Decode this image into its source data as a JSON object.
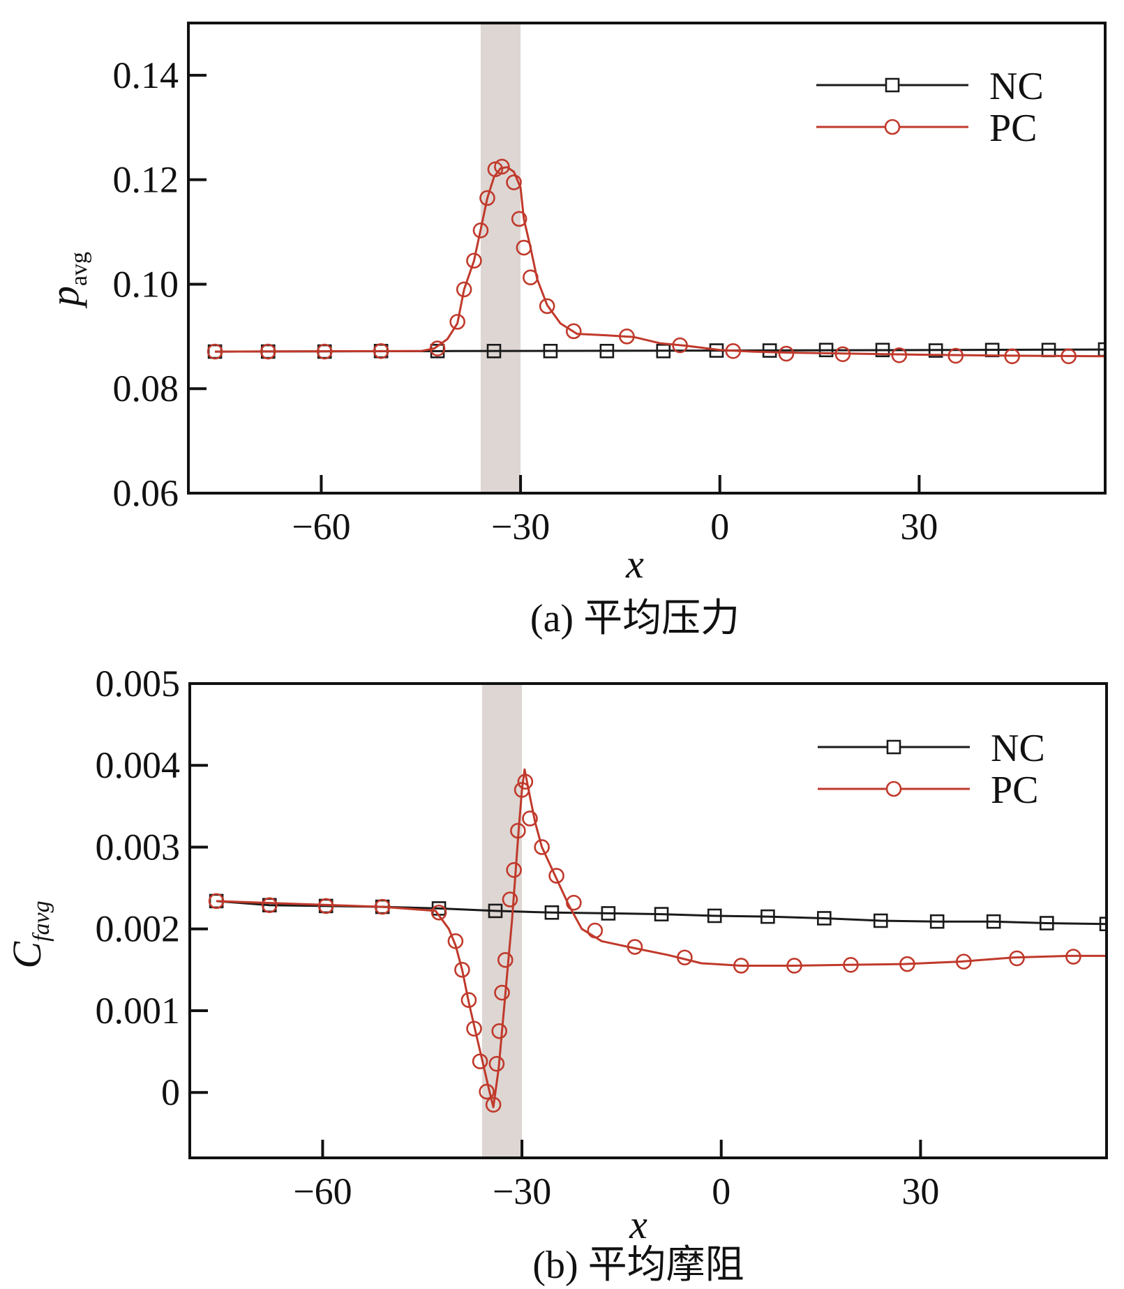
{
  "colors": {
    "nc": "#1a1a1a",
    "pc": "#c0392b",
    "band": "#ddd6d3"
  },
  "chart_data": [
    {
      "type": "line",
      "panel": "a",
      "caption": "(a) 平均压力",
      "xlabel": "x",
      "ylabel": "p",
      "ylabel_sub": "avg",
      "xlim": [
        -80,
        58
      ],
      "ylim": [
        0.06,
        0.15
      ],
      "xticks": [
        -60,
        -30,
        0,
        30
      ],
      "xtick_labels": [
        "−60",
        "−30",
        "0",
        "30"
      ],
      "yticks": [
        0.06,
        0.08,
        0.1,
        0.12,
        0.14
      ],
      "ytick_labels": [
        "0.06",
        "0.08",
        "0.10",
        "0.12",
        "0.14"
      ],
      "shaded_band": [
        -36,
        -30
      ],
      "legend_position": "top-right",
      "series": [
        {
          "name": "NC",
          "marker": "square",
          "color_key": "nc",
          "line": [
            [
              -76,
              0.0871
            ],
            [
              -40,
              0.0872
            ],
            [
              0,
              0.0873
            ],
            [
              58,
              0.0875
            ]
          ],
          "markers": [
            [
              -76,
              0.0871
            ],
            [
              -68,
              0.0871
            ],
            [
              -59.5,
              0.0871
            ],
            [
              -51,
              0.0872
            ],
            [
              -42.5,
              0.0872
            ],
            [
              -34,
              0.0872
            ],
            [
              -25.5,
              0.0872
            ],
            [
              -17,
              0.0872
            ],
            [
              -8.5,
              0.0872
            ],
            [
              -0.5,
              0.0873
            ],
            [
              7.5,
              0.0873
            ],
            [
              16,
              0.0874
            ],
            [
              24.5,
              0.0874
            ],
            [
              32.5,
              0.0873
            ],
            [
              41,
              0.0874
            ],
            [
              49.5,
              0.0874
            ],
            [
              58,
              0.0875
            ]
          ]
        },
        {
          "name": "PC",
          "marker": "circle",
          "color_key": "pc",
          "line": [
            [
              -76,
              0.0871
            ],
            [
              -45,
              0.0872
            ],
            [
              -43,
              0.0877
            ],
            [
              -41,
              0.0895
            ],
            [
              -39.5,
              0.0925
            ],
            [
              -38.5,
              0.099
            ],
            [
              -37,
              0.1045
            ],
            [
              -36,
              0.1105
            ],
            [
              -35,
              0.1165
            ],
            [
              -34,
              0.1205
            ],
            [
              -33,
              0.1222
            ],
            [
              -32,
              0.1224
            ],
            [
              -31,
              0.1215
            ],
            [
              -30,
              0.1185
            ],
            [
              -29.5,
              0.1125
            ],
            [
              -28.5,
              0.107
            ],
            [
              -27.5,
              0.101
            ],
            [
              -26,
              0.096
            ],
            [
              -24,
              0.0925
            ],
            [
              -21.5,
              0.0905
            ],
            [
              -17,
              0.0902
            ],
            [
              -13,
              0.0899
            ],
            [
              -9,
              0.0887
            ],
            [
              -5,
              0.0882
            ],
            [
              0,
              0.0874
            ],
            [
              5,
              0.0871
            ],
            [
              10,
              0.0869
            ],
            [
              20,
              0.0867
            ],
            [
              30,
              0.0865
            ],
            [
              45,
              0.0863
            ],
            [
              58,
              0.0862
            ]
          ],
          "markers": [
            [
              -76,
              0.0871
            ],
            [
              -68,
              0.0871
            ],
            [
              -59.5,
              0.0871
            ],
            [
              -51,
              0.0872
            ],
            [
              -42.5,
              0.0877
            ],
            [
              -39.5,
              0.0928
            ],
            [
              -38.5,
              0.099
            ],
            [
              -37,
              0.1045
            ],
            [
              -36,
              0.1103
            ],
            [
              -35,
              0.1165
            ],
            [
              -33.8,
              0.122
            ],
            [
              -32.8,
              0.1225
            ],
            [
              -31,
              0.1195
            ],
            [
              -30.2,
              0.1125
            ],
            [
              -29.5,
              0.107
            ],
            [
              -28.5,
              0.1013
            ],
            [
              -26,
              0.0958
            ],
            [
              -22,
              0.091
            ],
            [
              -14,
              0.09
            ],
            [
              -6,
              0.0883
            ],
            [
              2,
              0.0872
            ],
            [
              10,
              0.0867
            ],
            [
              18.5,
              0.0866
            ],
            [
              27,
              0.0864
            ],
            [
              35.5,
              0.0863
            ],
            [
              44,
              0.0862
            ],
            [
              52.5,
              0.0862
            ]
          ]
        }
      ]
    },
    {
      "type": "line",
      "panel": "b",
      "caption": "(b) 平均摩阻",
      "xlabel": "x",
      "ylabel": "C",
      "ylabel_sub": "favg",
      "xlim": [
        -80,
        58
      ],
      "ylim": [
        -0.0008,
        0.005
      ],
      "xticks": [
        -60,
        -30,
        0,
        30
      ],
      "xtick_labels": [
        "−60",
        "−30",
        "0",
        "30"
      ],
      "yticks": [
        0,
        0.001,
        0.002,
        0.003,
        0.004,
        0.005
      ],
      "ytick_labels": [
        "0",
        "0.001",
        "0.002",
        "0.003",
        "0.004",
        "0.005"
      ],
      "shaded_band": [
        -36,
        -30
      ],
      "legend_position": "top-right",
      "series": [
        {
          "name": "NC",
          "marker": "square",
          "color_key": "nc",
          "line": [
            [
              -76,
              0.00234
            ],
            [
              -68,
              0.00229
            ],
            [
              -59.5,
              0.00228
            ],
            [
              -51,
              0.00227
            ],
            [
              -42.5,
              0.00225
            ],
            [
              -34,
              0.00222
            ],
            [
              -25.5,
              0.0022
            ],
            [
              -17,
              0.00219
            ],
            [
              -9,
              0.00218
            ],
            [
              -1,
              0.00216
            ],
            [
              7,
              0.00215
            ],
            [
              15.5,
              0.00213
            ],
            [
              24,
              0.0021
            ],
            [
              32.5,
              0.00209
            ],
            [
              41,
              0.00209
            ],
            [
              49,
              0.00207
            ],
            [
              58,
              0.00206
            ]
          ],
          "markers": [
            [
              -76,
              0.00234
            ],
            [
              -68,
              0.00229
            ],
            [
              -59.5,
              0.00228
            ],
            [
              -51,
              0.00227
            ],
            [
              -42.5,
              0.00225
            ],
            [
              -34,
              0.00222
            ],
            [
              -25.5,
              0.0022
            ],
            [
              -17,
              0.00219
            ],
            [
              -9,
              0.00218
            ],
            [
              -1,
              0.00216
            ],
            [
              7,
              0.00215
            ],
            [
              15.5,
              0.00213
            ],
            [
              24,
              0.0021
            ],
            [
              32.5,
              0.00209
            ],
            [
              41,
              0.00209
            ],
            [
              49,
              0.00207
            ],
            [
              58,
              0.00206
            ]
          ]
        },
        {
          "name": "PC",
          "marker": "circle",
          "color_key": "pc",
          "line": [
            [
              -76,
              0.00234
            ],
            [
              -51,
              0.00227
            ],
            [
              -43,
              0.00222
            ],
            [
              -41,
              0.002
            ],
            [
              -40,
              0.0018
            ],
            [
              -39,
              0.0015
            ],
            [
              -38,
              0.0011
            ],
            [
              -37,
              0.00075
            ],
            [
              -36,
              0.0004
            ],
            [
              -35,
              5e-05
            ],
            [
              -34.3,
              -0.00018
            ],
            [
              -33.5,
              0.0003
            ],
            [
              -33,
              0.00075
            ],
            [
              -32.5,
              0.0012
            ],
            [
              -32,
              0.00165
            ],
            [
              -31.5,
              0.0021
            ],
            [
              -31,
              0.00265
            ],
            [
              -30.5,
              0.0032
            ],
            [
              -30,
              0.0037
            ],
            [
              -29.6,
              0.00395
            ],
            [
              -29,
              0.0037
            ],
            [
              -28,
              0.0033
            ],
            [
              -27,
              0.003
            ],
            [
              -25,
              0.00265
            ],
            [
              -23,
              0.0023
            ],
            [
              -21,
              0.002
            ],
            [
              -18,
              0.00185
            ],
            [
              -14,
              0.00178
            ],
            [
              -8,
              0.00168
            ],
            [
              -3,
              0.00158
            ],
            [
              3,
              0.00155
            ],
            [
              11,
              0.00155
            ],
            [
              19,
              0.00156
            ],
            [
              27.5,
              0.00157
            ],
            [
              36,
              0.0016
            ],
            [
              44,
              0.00165
            ],
            [
              52.5,
              0.00167
            ],
            [
              58,
              0.00167
            ]
          ],
          "markers": [
            [
              -76,
              0.00234
            ],
            [
              -68,
              0.00229
            ],
            [
              -59.5,
              0.00228
            ],
            [
              -51,
              0.00227
            ],
            [
              -42.5,
              0.0022
            ],
            [
              -40,
              0.00185
            ],
            [
              -39,
              0.0015
            ],
            [
              -38,
              0.00113
            ],
            [
              -37.2,
              0.00078
            ],
            [
              -36.3,
              0.00038
            ],
            [
              -35.3,
              1e-05
            ],
            [
              -34.3,
              -0.00015
            ],
            [
              -33.8,
              0.00035
            ],
            [
              -33.4,
              0.00075
            ],
            [
              -33,
              0.00122
            ],
            [
              -32.5,
              0.00162
            ],
            [
              -31.8,
              0.00236
            ],
            [
              -31.2,
              0.00272
            ],
            [
              -30.6,
              0.0032
            ],
            [
              -30,
              0.0037
            ],
            [
              -29.5,
              0.0038
            ],
            [
              -28.8,
              0.00335
            ],
            [
              -27,
              0.003
            ],
            [
              -24.8,
              0.00265
            ],
            [
              -22.2,
              0.00232
            ],
            [
              -19,
              0.00198
            ],
            [
              -13,
              0.00178
            ],
            [
              -5.5,
              0.00165
            ],
            [
              3,
              0.00155
            ],
            [
              11,
              0.00155
            ],
            [
              19.5,
              0.00156
            ],
            [
              28,
              0.00157
            ],
            [
              36.5,
              0.0016
            ],
            [
              44.5,
              0.00164
            ],
            [
              53,
              0.00166
            ]
          ]
        }
      ]
    }
  ]
}
